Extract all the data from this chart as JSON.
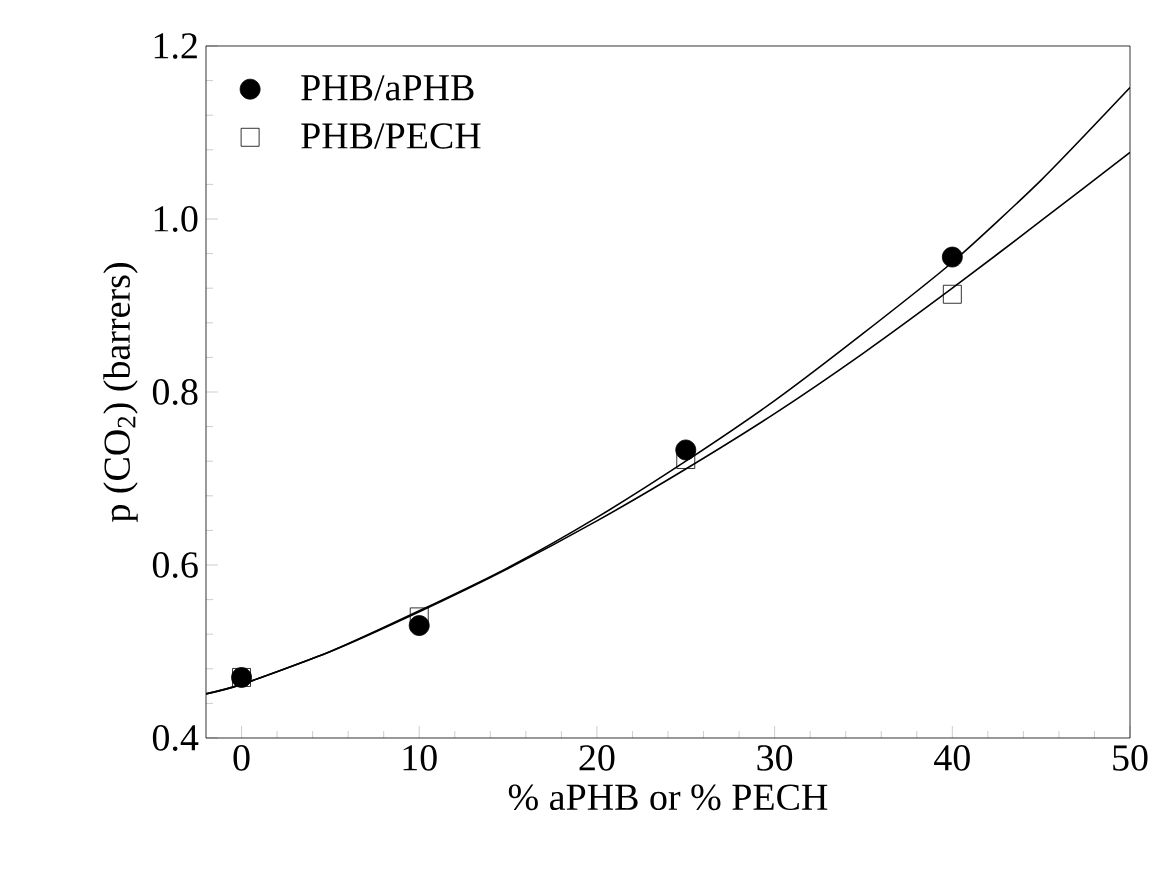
{
  "chart_data": {
    "type": "scatter",
    "xlabel": "% aPHB or % PECH",
    "ylabel": "p (CO$_{2}$) (barrers)",
    "xlim": [
      -2,
      50
    ],
    "xticks": [
      0,
      10,
      20,
      30,
      40,
      50
    ],
    "ylim": [
      0.4,
      1.2
    ],
    "yticks": [
      0.4,
      0.6,
      0.8,
      {
        "value": 1.0,
        "label": "1.0"
      },
      1.2
    ],
    "legend": "top left",
    "grid": false,
    "series": [
      {
        "name": "PHB/aPHB",
        "marker": "circle",
        "color": "#000000",
        "x": [
          0,
          10,
          25,
          40
        ],
        "values": [
          0.47,
          0.53,
          0.733,
          0.956
        ]
      },
      {
        "name": "PHB/PECH",
        "marker": "square",
        "color": "#000000",
        "x": [
          0,
          10,
          25,
          40
        ],
        "values": [
          0.47,
          0.54,
          0.722,
          0.913
        ]
      },
      {
        "type": "line",
        "marker": "none",
        "color": "#000000",
        "x": [
          -2,
          0,
          5,
          10,
          15,
          20,
          25,
          30,
          35,
          40,
          45,
          50
        ],
        "values": [
          0.451,
          0.462,
          0.5,
          0.547,
          0.597,
          0.655,
          0.72,
          0.79,
          0.868,
          0.95,
          1.045,
          1.152
        ]
      },
      {
        "type": "line",
        "marker": "none",
        "color": "#000000",
        "x": [
          -2,
          0,
          5,
          10,
          15,
          20,
          25,
          30,
          35,
          40,
          45,
          50
        ],
        "values": [
          0.451,
          0.462,
          0.5,
          0.546,
          0.596,
          0.651,
          0.711,
          0.775,
          0.845,
          0.92,
          0.998,
          1.077
        ]
      }
    ]
  }
}
